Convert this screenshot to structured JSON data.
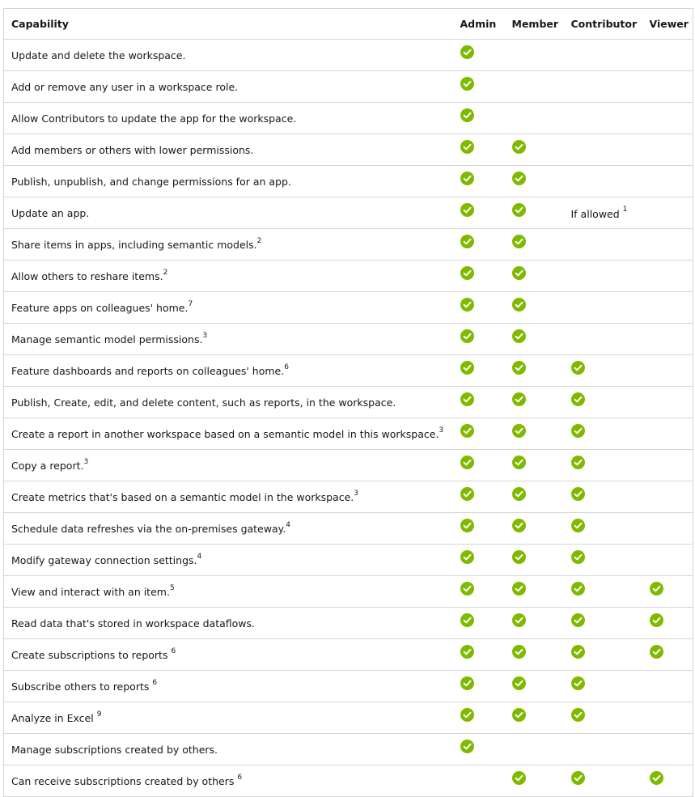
{
  "colors": {
    "check": "#7fba00",
    "border": "#d6d6d6"
  },
  "icons": {
    "allowed": "green-checkmark-circle"
  },
  "headers": [
    "Capability",
    "Admin",
    "Member",
    "Contributor",
    "Viewer"
  ],
  "rows": [
    {
      "cap": "Update and delete the workspace.",
      "sup": "",
      "admin": true,
      "member": false,
      "contributor": false,
      "contributor_text": "",
      "contributor_sup": "",
      "viewer": false
    },
    {
      "cap": "Add or remove any user in a workspace role.",
      "sup": "",
      "admin": true,
      "member": false,
      "contributor": false,
      "contributor_text": "",
      "contributor_sup": "",
      "viewer": false
    },
    {
      "cap": "Allow Contributors to update the app for the workspace.",
      "sup": "",
      "admin": true,
      "member": false,
      "contributor": false,
      "contributor_text": "",
      "contributor_sup": "",
      "viewer": false
    },
    {
      "cap": "Add members or others with lower permissions.",
      "sup": "",
      "admin": true,
      "member": true,
      "contributor": false,
      "contributor_text": "",
      "contributor_sup": "",
      "viewer": false
    },
    {
      "cap": "Publish, unpublish, and change permissions for an app.",
      "sup": "",
      "admin": true,
      "member": true,
      "contributor": false,
      "contributor_text": "",
      "contributor_sup": "",
      "viewer": false
    },
    {
      "cap": "Update an app.",
      "sup": "",
      "admin": true,
      "member": true,
      "contributor": false,
      "contributor_text": "If allowed",
      "contributor_sup": "1",
      "viewer": false
    },
    {
      "cap": "Share items in apps, including semantic models.",
      "sup": "2",
      "admin": true,
      "member": true,
      "contributor": false,
      "contributor_text": "",
      "contributor_sup": "",
      "viewer": false
    },
    {
      "cap": "Allow others to reshare items.",
      "sup": "2",
      "admin": true,
      "member": true,
      "contributor": false,
      "contributor_text": "",
      "contributor_sup": "",
      "viewer": false
    },
    {
      "cap": "Feature apps on colleagues' home.",
      "sup": "7",
      "admin": true,
      "member": true,
      "contributor": false,
      "contributor_text": "",
      "contributor_sup": "",
      "viewer": false
    },
    {
      "cap": "Manage semantic model permissions.",
      "sup": "3",
      "admin": true,
      "member": true,
      "contributor": false,
      "contributor_text": "",
      "contributor_sup": "",
      "viewer": false
    },
    {
      "cap": "Feature dashboards and reports on colleagues' home.",
      "sup": "6",
      "admin": true,
      "member": true,
      "contributor": true,
      "contributor_text": "",
      "contributor_sup": "",
      "viewer": false
    },
    {
      "cap": "Publish, Create, edit, and delete content, such as reports, in the workspace.",
      "sup": "",
      "admin": true,
      "member": true,
      "contributor": true,
      "contributor_text": "",
      "contributor_sup": "",
      "viewer": false
    },
    {
      "cap": "Create a report in another workspace based on a semantic model in this workspace.",
      "sup": "3",
      "admin": true,
      "member": true,
      "contributor": true,
      "contributor_text": "",
      "contributor_sup": "",
      "viewer": false
    },
    {
      "cap": "Copy a report.",
      "sup": "3",
      "admin": true,
      "member": true,
      "contributor": true,
      "contributor_text": "",
      "contributor_sup": "",
      "viewer": false
    },
    {
      "cap": "Create metrics that's based on a semantic model in the workspace.",
      "sup": "3",
      "admin": true,
      "member": true,
      "contributor": true,
      "contributor_text": "",
      "contributor_sup": "",
      "viewer": false
    },
    {
      "cap": "Schedule data refreshes via the on-premises gateway.",
      "sup": "4",
      "admin": true,
      "member": true,
      "contributor": true,
      "contributor_text": "",
      "contributor_sup": "",
      "viewer": false
    },
    {
      "cap": "Modify gateway connection settings.",
      "sup": "4",
      "admin": true,
      "member": true,
      "contributor": true,
      "contributor_text": "",
      "contributor_sup": "",
      "viewer": false
    },
    {
      "cap": "View and interact with an item.",
      "sup": "5",
      "admin": true,
      "member": true,
      "contributor": true,
      "contributor_text": "",
      "contributor_sup": "",
      "viewer": true
    },
    {
      "cap": "Read data that's stored in workspace dataflows.",
      "sup": "",
      "admin": true,
      "member": true,
      "contributor": true,
      "contributor_text": "",
      "contributor_sup": "",
      "viewer": true
    },
    {
      "cap": "Create subscriptions to reports ",
      "sup": "6",
      "admin": true,
      "member": true,
      "contributor": true,
      "contributor_text": "",
      "contributor_sup": "",
      "viewer": true
    },
    {
      "cap": "Subscribe others to reports ",
      "sup": "6",
      "admin": true,
      "member": true,
      "contributor": true,
      "contributor_text": "",
      "contributor_sup": "",
      "viewer": false
    },
    {
      "cap": "Analyze in Excel ",
      "sup": "9",
      "admin": true,
      "member": true,
      "contributor": true,
      "contributor_text": "",
      "contributor_sup": "",
      "viewer": false
    },
    {
      "cap": "Manage subscriptions created by others.",
      "sup": "",
      "admin": true,
      "member": false,
      "contributor": false,
      "contributor_text": "",
      "contributor_sup": "",
      "viewer": false
    },
    {
      "cap": "Can receive subscriptions created by others ",
      "sup": "6",
      "admin": false,
      "member": true,
      "contributor": true,
      "contributor_text": "",
      "contributor_sup": "",
      "viewer": true
    }
  ]
}
